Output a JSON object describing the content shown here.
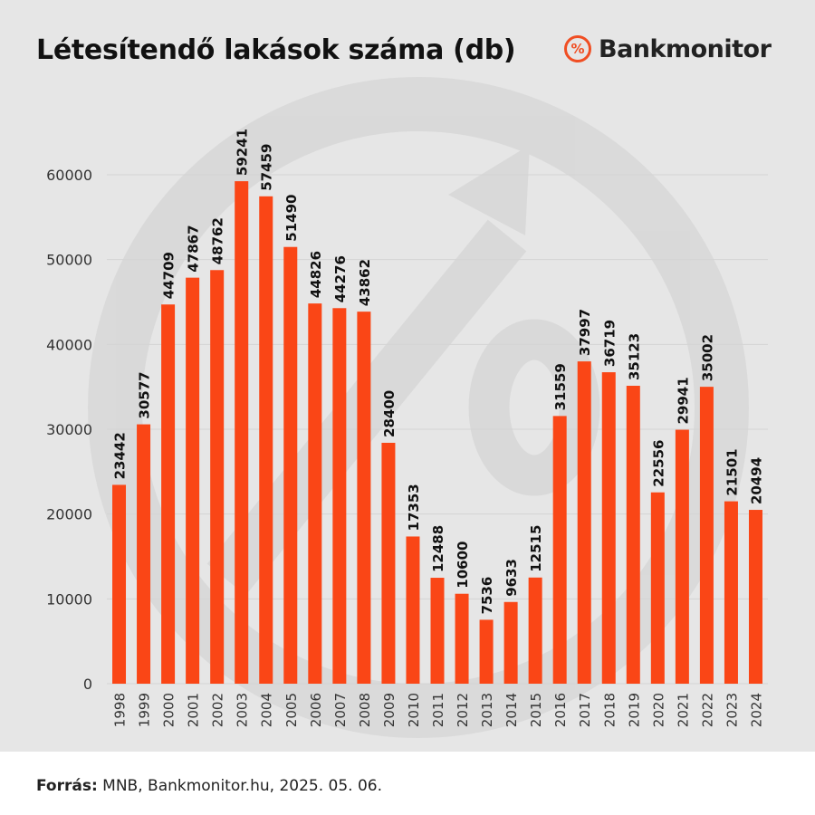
{
  "title": "Létesítendő lakások száma (db)",
  "brand": {
    "icon": "percent-icon",
    "icon_glyph": "%",
    "name": "Bankmonitor"
  },
  "footer": {
    "label": "Forrás:",
    "text": "MNB, Bankmonitor.hu, 2025. 05. 06."
  },
  "colors": {
    "bar": "#fa4616",
    "background": "#e6e6e6",
    "accent": "#f04e23"
  },
  "chart_data": {
    "type": "bar",
    "title": "Létesítendő lakások száma (db)",
    "xlabel": "",
    "ylabel": "",
    "ylim": [
      0,
      65000
    ],
    "yticks": [
      0,
      10000,
      20000,
      30000,
      40000,
      50000,
      60000
    ],
    "grid": true,
    "legend": "none",
    "categories": [
      "1998",
      "1999",
      "2000",
      "2001",
      "2002",
      "2003",
      "2004",
      "2005",
      "2006",
      "2007",
      "2008",
      "2009",
      "2010",
      "2011",
      "2012",
      "2013",
      "2014",
      "2015",
      "2016",
      "2017",
      "2018",
      "2019",
      "2020",
      "2021",
      "2022",
      "2023",
      "2024"
    ],
    "values": [
      23442,
      30577,
      44709,
      47867,
      48762,
      59241,
      57459,
      51490,
      44826,
      44276,
      43862,
      28400,
      17353,
      12488,
      10600,
      7536,
      9633,
      12515,
      31559,
      37997,
      36719,
      35123,
      22556,
      29941,
      35002,
      21501,
      20494
    ]
  }
}
